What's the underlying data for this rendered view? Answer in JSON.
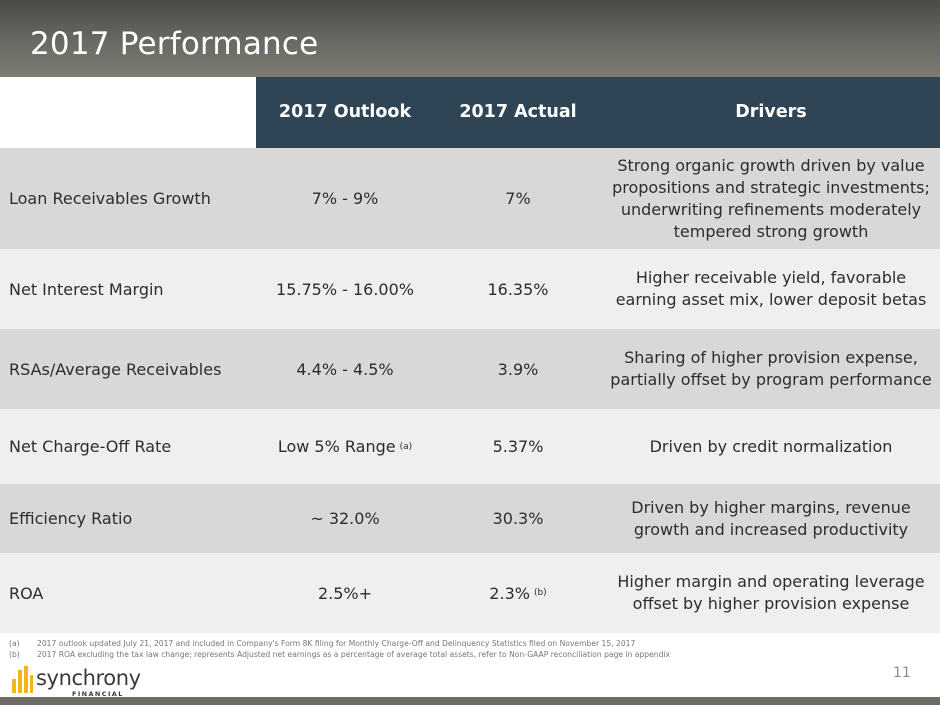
{
  "title": "2017 Performance",
  "header": {
    "outlook": "2017 Outlook",
    "actual": "2017 Actual",
    "drivers": "Drivers"
  },
  "rows": [
    {
      "metric": "Loan Receivables Growth",
      "outlook": "7% - 9%",
      "actual": "7%",
      "drivers": "Strong organic growth driven by value propositions and strategic investments; underwriting refinements moderately tempered strong growth"
    },
    {
      "metric": "Net Interest Margin",
      "outlook": "15.75% - 16.00%",
      "actual": "16.35%",
      "drivers": "Higher receivable yield, favorable earning asset mix, lower deposit betas"
    },
    {
      "metric": "RSAs/Average Receivables",
      "outlook": "4.4% - 4.5%",
      "actual": "3.9%",
      "drivers": "Sharing of higher provision expense, partially offset by program performance"
    },
    {
      "metric": "Net Charge-Off Rate",
      "outlook": "Low 5% Range",
      "outlook_note": "(a)",
      "actual": "5.37%",
      "drivers": "Driven by credit normalization"
    },
    {
      "metric": "Efficiency Ratio",
      "outlook": "~ 32.0%",
      "actual": "30.3%",
      "drivers": "Driven by higher margins, revenue growth and increased productivity"
    },
    {
      "metric": "ROA",
      "outlook": "2.5%+",
      "actual": "2.3%",
      "actual_note": "(b)",
      "drivers": "Higher margin and operating leverage offset by higher provision expense"
    }
  ],
  "footnotes": [
    {
      "tag": "(a)",
      "text": "2017 outlook updated July 21, 2017 and included in Company's Form 8K filing for Monthly Charge-Off and Delinquency Statistics filed on November 15, 2017"
    },
    {
      "tag": "(b)",
      "text": "2017 ROA excluding the tax law change; represents Adjusted net earnings as a percentage of average total assets, refer to Non-GAAP reconciliation page in appendix"
    }
  ],
  "logo": {
    "name": "synchrony",
    "sub": "FINANCIAL"
  },
  "page_number": "11",
  "colors": {
    "header_bg": "#2f4555",
    "row_dark": "#d8d8d8",
    "row_light": "#efefef",
    "logo_accent": "#f2b51c"
  }
}
